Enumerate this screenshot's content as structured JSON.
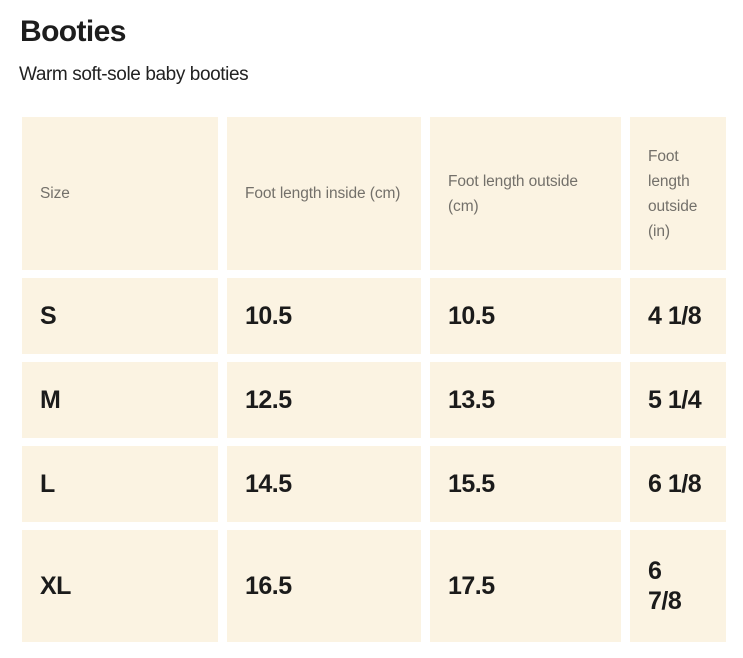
{
  "page": {
    "title": "Booties",
    "subtitle": "Warm soft-sole baby booties"
  },
  "size_chart": {
    "columns": [
      {
        "label": "Size"
      },
      {
        "label": "Foot length inside (cm)"
      },
      {
        "label": "Foot length outside (cm)"
      },
      {
        "label": "Foot length outside (in)"
      }
    ],
    "rows": [
      {
        "size": "S",
        "inside_cm": "10.5",
        "outside_cm": "10.5",
        "outside_in": "4 1/8"
      },
      {
        "size": "M",
        "inside_cm": "12.5",
        "outside_cm": "13.5",
        "outside_in": "5 1/4"
      },
      {
        "size": "L",
        "inside_cm": "14.5",
        "outside_cm": "15.5",
        "outside_in": "6 1/8"
      },
      {
        "size": "XL",
        "inside_cm": "16.5",
        "outside_cm": "17.5",
        "outside_in": "6\n7/8"
      }
    ],
    "colors": {
      "cell_background": "#fbf3e2",
      "header_text": "#73706a",
      "body_text": "#1b1b1b",
      "page_background": "#ffffff"
    }
  }
}
